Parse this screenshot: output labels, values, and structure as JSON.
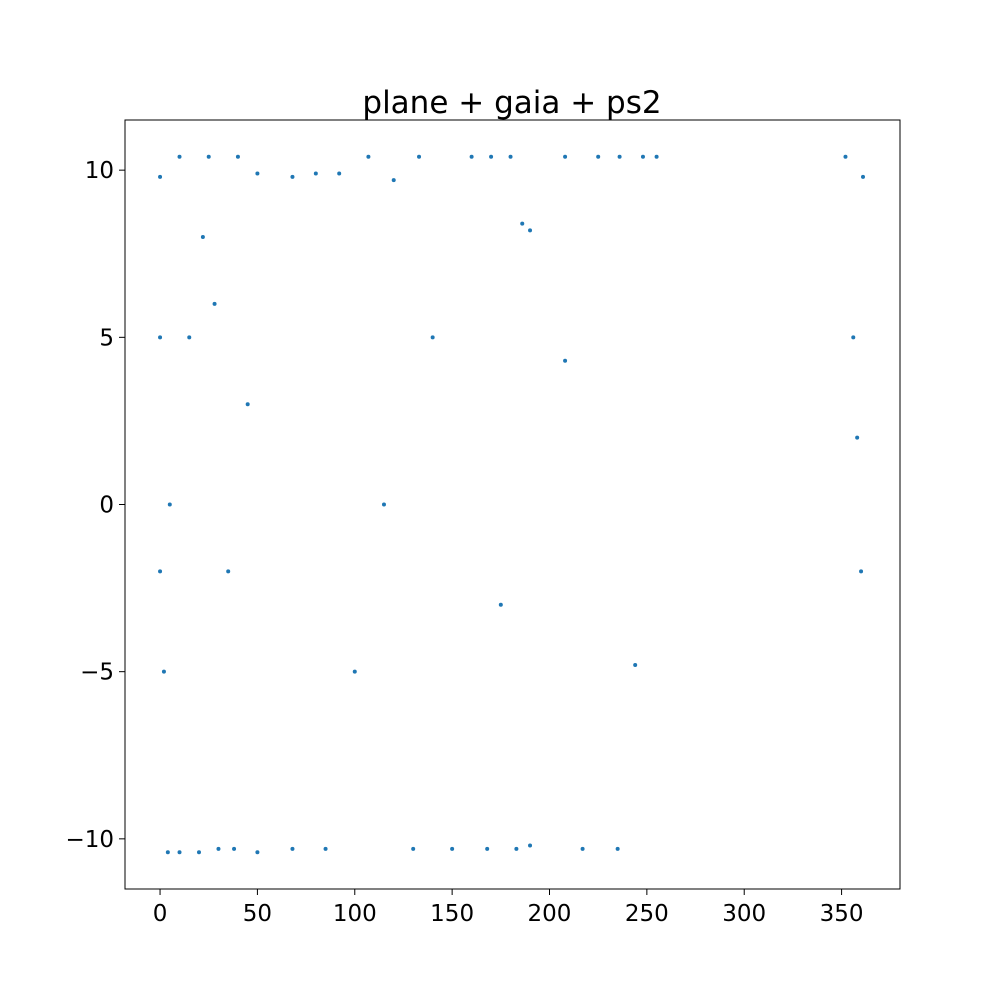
{
  "chart_data": {
    "type": "scatter",
    "title": "plane + gaia + ps2",
    "xlabel": "",
    "ylabel": "",
    "xlim": [
      -18,
      380
    ],
    "ylim": [
      -11.5,
      11.5
    ],
    "xticks": [
      0,
      50,
      100,
      150,
      200,
      250,
      300,
      350
    ],
    "yticks": [
      -10,
      -5,
      0,
      5,
      10
    ],
    "xtick_labels": [
      "0",
      "50",
      "100",
      "150",
      "200",
      "250",
      "300",
      "350"
    ],
    "ytick_labels": [
      "−10",
      "−5",
      "0",
      "5",
      "10"
    ],
    "grid": false,
    "legend": "none",
    "marker_color": "#1f77b4",
    "series": [
      {
        "points": [
          [
            0,
            9.8
          ],
          [
            0,
            5.0
          ],
          [
            0,
            -2.0
          ],
          [
            2,
            -5.0
          ],
          [
            4,
            -10.4
          ],
          [
            10,
            -10.4
          ],
          [
            20,
            -10.4
          ],
          [
            30,
            -10.3
          ],
          [
            38,
            -10.3
          ],
          [
            50,
            -10.4
          ],
          [
            10,
            10.4
          ],
          [
            25,
            10.4
          ],
          [
            40,
            10.4
          ],
          [
            50,
            9.9
          ],
          [
            5,
            0.0
          ],
          [
            15,
            5.0
          ],
          [
            22,
            8.0
          ],
          [
            28,
            6.0
          ],
          [
            35,
            -2.0
          ],
          [
            45,
            3.0
          ],
          [
            68,
            -10.3
          ],
          [
            68,
            9.8
          ],
          [
            80,
            9.9
          ],
          [
            85,
            -10.3
          ],
          [
            92,
            9.9
          ],
          [
            100,
            -5.0
          ],
          [
            107,
            10.4
          ],
          [
            115,
            0.0
          ],
          [
            120,
            9.7
          ],
          [
            130,
            -10.3
          ],
          [
            133,
            10.4
          ],
          [
            140,
            5.0
          ],
          [
            150,
            -10.3
          ],
          [
            160,
            10.4
          ],
          [
            168,
            -10.3
          ],
          [
            170,
            10.4
          ],
          [
            175,
            -3.0
          ],
          [
            180,
            10.4
          ],
          [
            183,
            -10.3
          ],
          [
            186,
            8.4
          ],
          [
            190,
            8.2
          ],
          [
            190,
            -10.2
          ],
          [
            208,
            10.4
          ],
          [
            208,
            4.3
          ],
          [
            217,
            -10.3
          ],
          [
            225,
            10.4
          ],
          [
            235,
            -10.3
          ],
          [
            236,
            10.4
          ],
          [
            244,
            -4.8
          ],
          [
            248,
            10.4
          ],
          [
            255,
            10.4
          ],
          [
            352,
            10.4
          ],
          [
            356,
            5.0
          ],
          [
            358,
            2.0
          ],
          [
            360,
            -2.0
          ],
          [
            361,
            9.8
          ]
        ]
      }
    ]
  }
}
